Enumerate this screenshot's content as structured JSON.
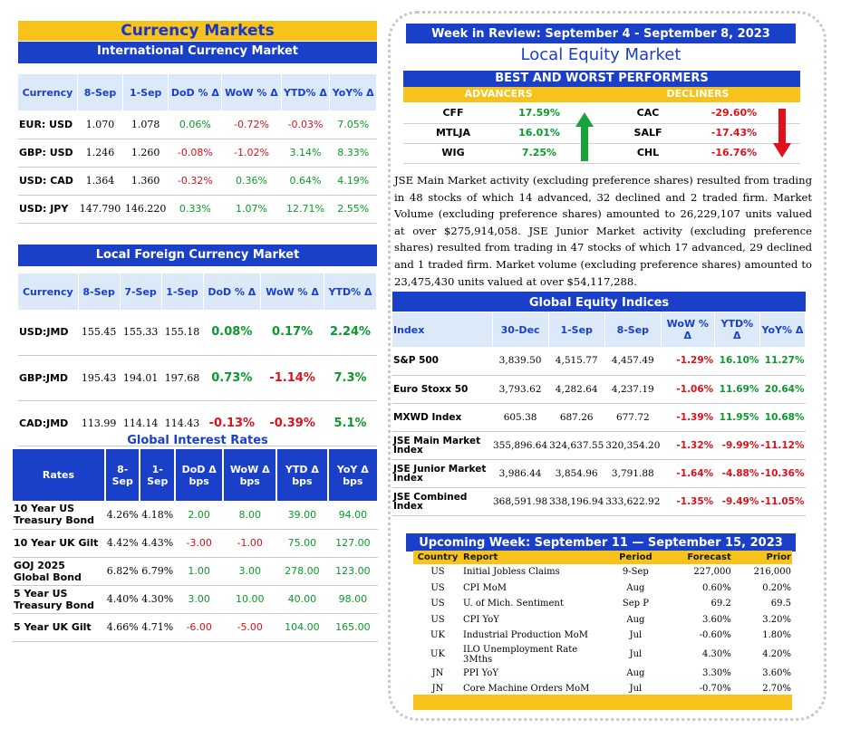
{
  "currency_markets": {
    "title": "Currency Markets",
    "intl": {
      "subtitle": "International Currency Market",
      "headers": [
        "Currency",
        "8-Sep",
        "1-Sep",
        "DoD % Δ",
        "WoW % Δ",
        "YTD% Δ",
        "YoY% Δ"
      ],
      "rows": [
        [
          "EUR: USD",
          "1.070",
          "1.078",
          "0.06%",
          "-0.72%",
          "-0.03%",
          "7.05%"
        ],
        [
          "GBP: USD",
          "1.246",
          "1.260",
          "-0.08%",
          "-1.02%",
          "3.14%",
          "8.33%"
        ],
        [
          "USD: CAD",
          "1.364",
          "1.360",
          "-0.32%",
          "0.36%",
          "0.64%",
          "4.19%"
        ],
        [
          "USD: JPY",
          "147.790",
          "146.220",
          "0.33%",
          "1.07%",
          "12.71%",
          "2.55%"
        ]
      ]
    },
    "local": {
      "subtitle": "Local Foreign Currency Market",
      "headers": [
        "Currency",
        "8-Sep",
        "7-Sep",
        "1-Sep",
        "DoD % Δ",
        "WoW % Δ",
        "YTD% Δ"
      ],
      "rows": [
        [
          "USD:JMD",
          "155.45",
          "155.33",
          "155.18",
          "0.08%",
          "0.17%",
          "2.24%"
        ],
        [
          "GBP:JMD",
          "195.43",
          "194.01",
          "197.68",
          "0.73%",
          "-1.14%",
          "7.3%"
        ],
        [
          "CAD:JMD",
          "113.99",
          "114.14",
          "114.43",
          "-0.13%",
          "-0.39%",
          "5.1%"
        ]
      ]
    }
  },
  "interest_rates": {
    "title": "Global Interest Rates",
    "headers": [
      "Rates",
      "8-Sep",
      "1-Sep",
      "DoD Δ bps",
      "WoW Δ bps",
      "YTD Δ bps",
      "YoY Δ bps"
    ],
    "rows": [
      [
        "10 Year US Treasury Bond",
        "4.26%",
        "4.18%",
        "2.00",
        "8.00",
        "39.00",
        "94.00"
      ],
      [
        "10 Year UK Gilt",
        "4.42%",
        "4.43%",
        "-3.00",
        "-1.00",
        "75.00",
        "127.00"
      ],
      [
        "GOJ 2025 Global Bond",
        "6.82%",
        "6.79%",
        "1.00",
        "3.00",
        "278.00",
        "123.00"
      ],
      [
        "5 Year US Treasury Bond",
        "4.40%",
        "4.30%",
        "3.00",
        "10.00",
        "40.00",
        "98.00"
      ],
      [
        "5 Year UK Gilt",
        "4.66%",
        "4.71%",
        "-6.00",
        "-5.00",
        "104.00",
        "165.00"
      ]
    ]
  },
  "week_review": {
    "banner": "Week in Review: September 4 - September 8, 2023",
    "heading": "Local Equity Market",
    "performers_title": "BEST AND WORST PERFORMERS",
    "advancers_label": "ADVANCERS",
    "decliners_label": "DECLINERS",
    "advancers": [
      [
        "CFF",
        "17.59%"
      ],
      [
        "MTLJA",
        "16.01%"
      ],
      [
        "WIG",
        "7.25%"
      ]
    ],
    "decliners": [
      [
        "CAC",
        "-29.60%"
      ],
      [
        "SALF",
        "-17.43%"
      ],
      [
        "CHL",
        "-16.76%"
      ]
    ],
    "paragraph": "JSE Main Market activity (excluding preference shares) resulted from trading in 48 stocks of which 14 advanced, 32 declined and 2 traded firm. Market Volume (excluding preference shares) amounted to 26,229,107 units valued at over $275,914,058. JSE Junior Market activity (excluding preference shares) resulted from trading in 47 stocks of which 17 advanced, 29 declined and 1 traded firm. Market volume (excluding preference shares) amounted to 23,475,430 units valued at over $54,117,288."
  },
  "global_indices": {
    "title": "Global Equity Indices",
    "headers": [
      "Index",
      "30-Dec",
      "1-Sep",
      "8-Sep",
      "WoW % Δ",
      "YTD% Δ",
      "YoY% Δ"
    ],
    "rows": [
      [
        "S&P 500",
        "3,839.50",
        "4,515.77",
        "4,457.49",
        "-1.29%",
        "16.10%",
        "11.27%"
      ],
      [
        "Euro Stoxx 50",
        "3,793.62",
        "4,282.64",
        "4,237.19",
        "-1.06%",
        "11.69%",
        "20.64%"
      ],
      [
        "MXWD  Index",
        "605.38",
        "687.26",
        "677.72",
        "-1.39%",
        "11.95%",
        "10.68%"
      ],
      [
        "JSE Main Market Index",
        "355,896.64",
        "324,637.55",
        "320,354.20",
        "-1.32%",
        "-9.99%",
        "-11.12%"
      ],
      [
        "JSE Junior Market Index",
        "3,986.44",
        "3,854.96",
        "3,791.88",
        "-1.64%",
        "-4.88%",
        "-10.36%"
      ],
      [
        "JSE Combined Index",
        "368,591.98",
        "338,196.94",
        "333,622.92",
        "-1.35%",
        "-9.49%",
        "-11.05%"
      ]
    ]
  },
  "upcoming": {
    "title": "Upcoming Week: September 11 — September 15, 2023",
    "headers": [
      "Country",
      "Report",
      "Period",
      "Forecast",
      "Prior"
    ],
    "rows": [
      [
        "US",
        "Initial Jobless Claims",
        "9-Sep",
        "227,000",
        "216,000"
      ],
      [
        "US",
        "CPI MoM",
        "Aug",
        "0.60%",
        "0.20%"
      ],
      [
        "US",
        "U. of Mich. Sentiment",
        "Sep P",
        "69.2",
        "69.5"
      ],
      [
        "US",
        "CPI YoY",
        "Aug",
        "3.60%",
        "3.20%"
      ],
      [
        "UK",
        "Industrial Production MoM",
        "Jul",
        "-0.60%",
        "1.80%"
      ],
      [
        "UK",
        "ILO Unemployment Rate 3Mths",
        "Jul",
        "4.30%",
        "4.20%"
      ],
      [
        "JN",
        "PPI YoY",
        "Aug",
        "3.30%",
        "3.60%"
      ],
      [
        "JN",
        "Core Machine Orders MoM",
        "Jul",
        "-0.70%",
        "2.70%"
      ]
    ]
  },
  "colors": {
    "gold": "#f7c21a",
    "blue": "#1a3fc8",
    "green": "#0a9a2a",
    "red": "#e0101a",
    "light": "#dbe9f8"
  }
}
